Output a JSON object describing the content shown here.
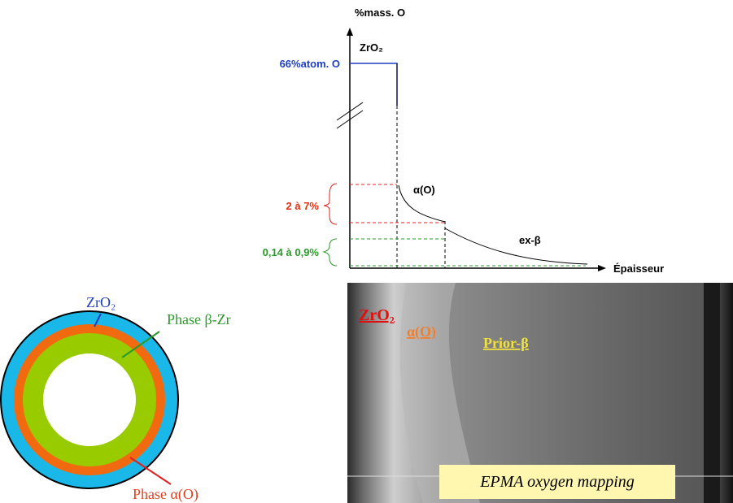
{
  "profile": {
    "y_axis_label": "%mass. O",
    "x_axis_label": "Épaisseur",
    "oxide_label": "ZrO₂",
    "oxide_level": "66%atom. O",
    "alpha_label": "α(O)",
    "alpha_range": "2 à 7%",
    "beta_label": "ex-β",
    "beta_range": "0,14 à 0,9%"
  },
  "cross_section": {
    "oxide_label": "ZrO₂",
    "beta_label": "Phase β-Zr",
    "alpha_label": "Phase α(O)"
  },
  "micrograph": {
    "oxide_label": "ZrO₂",
    "alpha_label": "α(O)",
    "beta_label": "Prior-β",
    "caption": "EPMA oxygen mapping"
  }
}
